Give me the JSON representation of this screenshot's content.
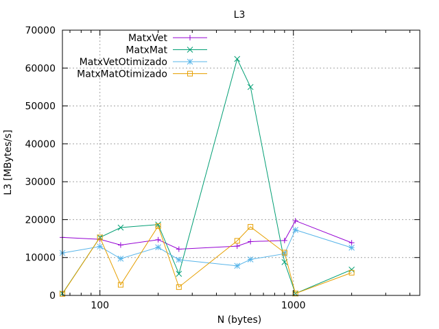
{
  "chart_data": {
    "type": "line",
    "title": "L3",
    "xlabel": "N (bytes)",
    "ylabel": "L3 [MBytes/s]",
    "xscale": "log",
    "xlim": [
      64,
      4500
    ],
    "ylim": [
      0,
      70000
    ],
    "xticks": [
      100,
      1000
    ],
    "yticks": [
      0,
      10000,
      20000,
      30000,
      40000,
      50000,
      60000,
      70000
    ],
    "grid": true,
    "legend_position": "top-left",
    "series": [
      {
        "name": "MatxVet",
        "color": "#9400d3",
        "marker": "plus",
        "x": [
          64,
          100,
          128,
          200,
          256,
          512,
          600,
          900,
          1024,
          2000
        ],
        "y": [
          15300,
          14800,
          13300,
          14700,
          12200,
          13000,
          14200,
          14500,
          19700,
          13900
        ]
      },
      {
        "name": "MatxMat",
        "color": "#009e73",
        "marker": "cross",
        "x": [
          64,
          100,
          128,
          200,
          256,
          512,
          600,
          900,
          1024,
          2000
        ],
        "y": [
          500,
          15300,
          17900,
          18700,
          5700,
          62400,
          55000,
          8800,
          500,
          6800
        ]
      },
      {
        "name": "MatxVetOtimizado",
        "color": "#56b4e9",
        "marker": "star",
        "x": [
          64,
          100,
          128,
          200,
          256,
          512,
          600,
          900,
          1024,
          2000
        ],
        "y": [
          11200,
          12900,
          9700,
          12700,
          9400,
          7800,
          9500,
          11000,
          17300,
          12600
        ]
      },
      {
        "name": "MatxMatOtimizado",
        "color": "#e69f00",
        "marker": "square",
        "x": [
          64,
          100,
          128,
          200,
          256,
          512,
          600,
          900,
          1024,
          2000
        ],
        "y": [
          400,
          15300,
          2800,
          18300,
          2200,
          14400,
          18100,
          11300,
          500,
          6000
        ]
      }
    ]
  }
}
